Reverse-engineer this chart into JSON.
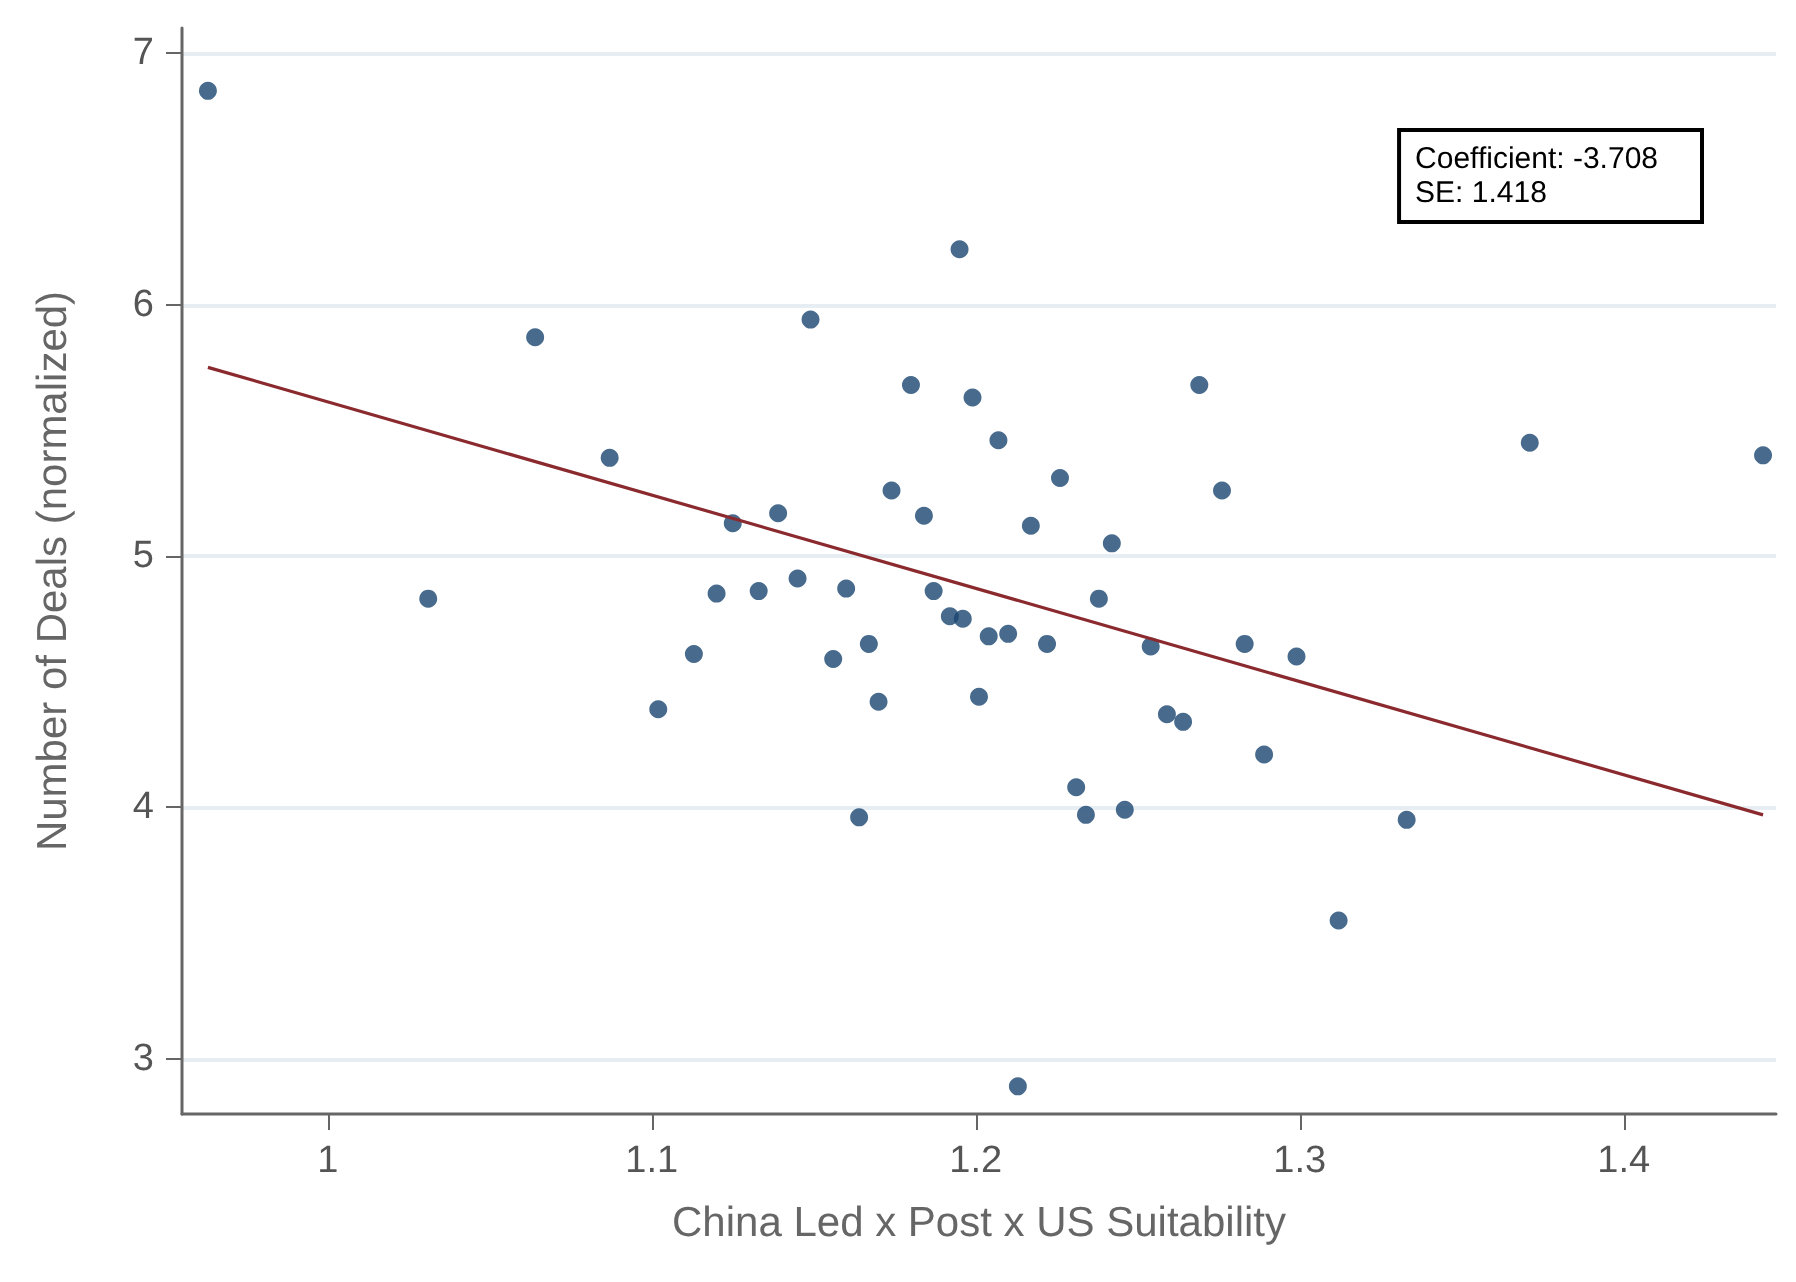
{
  "chart_data": {
    "type": "scatter",
    "xlabel": "China Led x Post x US Suitability",
    "ylabel": "Number of Deals (normalized)",
    "xlim": [
      0.955,
      1.447
    ],
    "xticks": [
      1,
      1.1,
      1.2,
      1.3,
      1.4
    ],
    "ylim": [
      2.78,
      7.1
    ],
    "yticks": [
      3,
      4,
      5,
      6,
      7
    ],
    "grid": "y",
    "marker": "circle",
    "annotations": [
      "Coefficient: -3.708",
      "SE: 1.418"
    ],
    "series": [
      {
        "type": "scatter",
        "color": "#1a4670",
        "x": [
          0.963,
          1.031,
          1.064,
          1.087,
          1.102,
          1.113,
          1.12,
          1.125,
          1.133,
          1.139,
          1.145,
          1.149,
          1.156,
          1.16,
          1.164,
          1.167,
          1.17,
          1.174,
          1.18,
          1.184,
          1.187,
          1.192,
          1.195,
          1.196,
          1.199,
          1.201,
          1.204,
          1.207,
          1.21,
          1.213,
          1.217,
          1.222,
          1.226,
          1.231,
          1.234,
          1.238,
          1.242,
          1.246,
          1.254,
          1.259,
          1.264,
          1.269,
          1.276,
          1.283,
          1.289,
          1.299,
          1.312,
          1.333,
          1.371,
          1.443
        ],
        "values": [
          6.85,
          4.83,
          5.87,
          5.39,
          4.39,
          4.61,
          4.85,
          5.13,
          4.86,
          5.17,
          4.91,
          5.94,
          4.59,
          4.87,
          3.96,
          4.65,
          4.42,
          5.26,
          5.68,
          5.16,
          4.86,
          4.76,
          6.22,
          4.75,
          5.63,
          4.44,
          4.68,
          5.46,
          4.69,
          2.89,
          5.12,
          4.65,
          5.31,
          4.08,
          3.97,
          4.83,
          5.05,
          3.99,
          4.64,
          4.37,
          4.34,
          5.68,
          5.26,
          4.65,
          4.21,
          4.6,
          3.55,
          3.95,
          5.45,
          5.4
        ]
      },
      {
        "type": "line",
        "color": "#8b2a2e",
        "marker": "none",
        "line_style": "solid",
        "x": [
          0.963,
          1.443
        ],
        "values": [
          5.75,
          3.97
        ]
      }
    ]
  }
}
